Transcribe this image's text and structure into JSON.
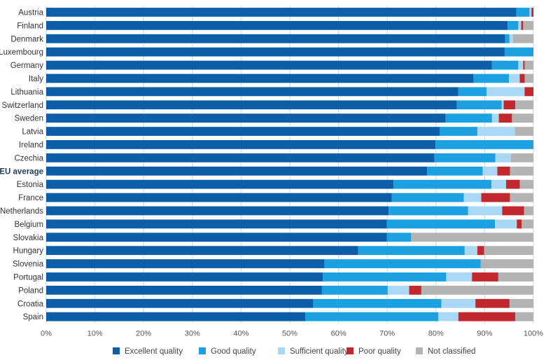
{
  "chart_data": {
    "type": "bar",
    "orientation": "horizontal",
    "stacked": true,
    "categories": [
      "Austria",
      "Finland",
      "Denmark",
      "Luxembourg",
      "Germany",
      "Italy",
      "Lithuania",
      "Switzerland",
      "Sweden",
      "Latvia",
      "Ireland",
      "Czechia",
      "EU average",
      "Estonia",
      "France",
      "Netherlands",
      "Belgium",
      "Slovakia",
      "Hungary",
      "Slovenia",
      "Portugal",
      "Poland",
      "Croatia",
      "Spain"
    ],
    "highlight_category": "EU average",
    "series": [
      {
        "name": "Excellent quality",
        "color": "#0d5ea8",
        "values": [
          96.5,
          94.7,
          94.2,
          94.1,
          91.5,
          87.7,
          84.6,
          84.3,
          82.0,
          80.8,
          79.9,
          79.7,
          78.2,
          71.3,
          70.9,
          70.3,
          69.9,
          69.9,
          64.0,
          57.1,
          56.8,
          56.6,
          54.8,
          53.2
        ]
      },
      {
        "name": "Good quality",
        "color": "#1ba1e2",
        "values": [
          2.7,
          2.2,
          0.9,
          5.9,
          5.4,
          7.3,
          5.8,
          9.2,
          9.5,
          7.7,
          20.1,
          12.5,
          11.4,
          20.1,
          14.8,
          16.3,
          22.2,
          5.0,
          21.9,
          32.1,
          25.3,
          13.5,
          26.3,
          27.3
        ]
      },
      {
        "name": "Sufficient quality",
        "color": "#a8d8f5",
        "values": [
          0.4,
          0.6,
          0.7,
          0,
          1.0,
          2.2,
          7.8,
          0.4,
          1.4,
          7.7,
          0,
          3.2,
          3.0,
          3.0,
          3.6,
          7.0,
          4.5,
          0,
          2.6,
          0,
          5.3,
          4.4,
          7.0,
          4.1
        ]
      },
      {
        "name": "Poor quality",
        "color": "#c0282d",
        "values": [
          0.4,
          0.4,
          0,
          0,
          0.3,
          1.0,
          1.8,
          2.4,
          2.7,
          0,
          0,
          0,
          2.6,
          2.8,
          5.9,
          4.5,
          1.0,
          0,
          1.4,
          0,
          5.4,
          2.5,
          7.0,
          11.7
        ]
      },
      {
        "name": "Not classified",
        "color": "#b3b3b3",
        "values": [
          0,
          2.1,
          4.2,
          0,
          1.8,
          1.8,
          0,
          3.7,
          4.4,
          3.8,
          0,
          4.6,
          4.8,
          2.8,
          4.8,
          1.9,
          2.4,
          25.1,
          10.1,
          10.8,
          7.2,
          23.0,
          4.9,
          3.7
        ]
      }
    ],
    "xaxis": {
      "min": 0,
      "max": 100,
      "ticks": [
        0,
        10,
        20,
        30,
        40,
        50,
        60,
        70,
        80,
        90,
        100
      ],
      "tick_labels": [
        "0%",
        "10%",
        "20%",
        "30%",
        "40%",
        "50%",
        "60%",
        "70%",
        "80%",
        "90%",
        "100%"
      ]
    },
    "title": "",
    "xlabel": "",
    "ylabel": "",
    "grid": true,
    "legend": "bottom"
  }
}
